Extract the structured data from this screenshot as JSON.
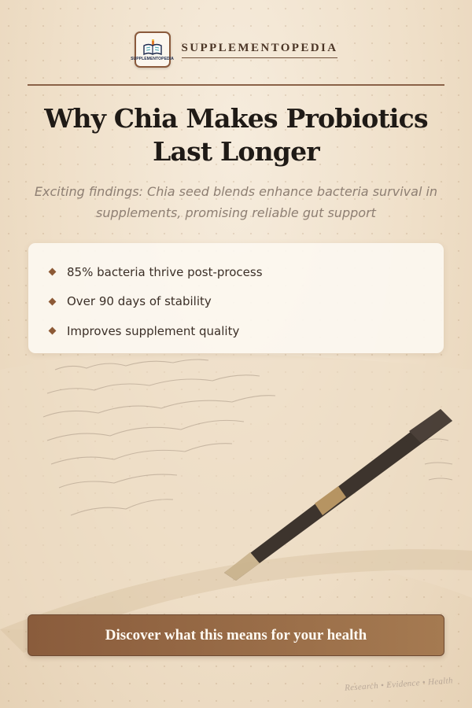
{
  "brand": {
    "name": "SUPPLEMENTOPEDIA",
    "logo_caption": "SUPPLEMENTOPEDIA",
    "logo_icon": "open-book-with-pencil-icon"
  },
  "headline": "Why Chia Makes Probiotics Last Longer",
  "subtitle": "Exciting findings: Chia seed blends enhance bacteria survival in supplements, promising reliable gut support",
  "highlights": [
    "85% bacteria thrive post-process",
    "Over 90 days of stability",
    "Improves supplement quality"
  ],
  "cta": "Discover what this means for your health",
  "footer": "Research • Evidence • Health",
  "colors": {
    "accent": "#8a5c3c",
    "accent_light": "#a57a51",
    "title": "#1f1a16",
    "background": "#f1e4d2"
  }
}
